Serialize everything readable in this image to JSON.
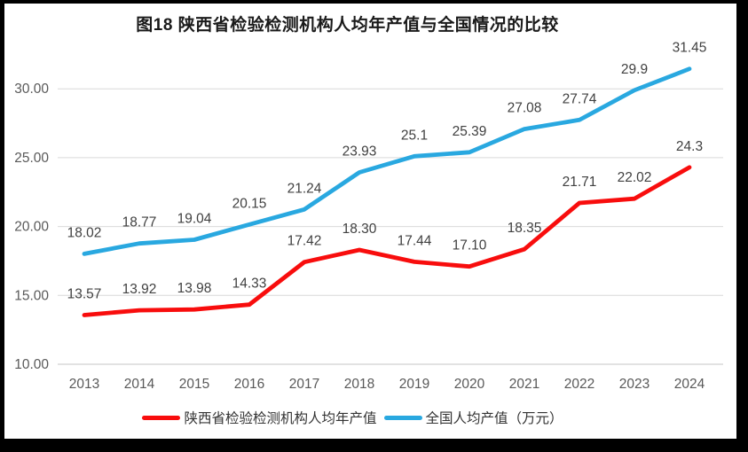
{
  "title": "图18 陕西省检验检测机构人均年产值与全国情况的比较",
  "colors": {
    "shaanxi_series": "#f80d0d",
    "national_series": "#29a8e0",
    "gridline": "#d9d9d9",
    "axis_line": "#c6c6c6",
    "frame": "#000000"
  },
  "chart_data": {
    "type": "line",
    "title": "图18 陕西省检验检测机构人均年产值与全国情况的比较",
    "categories": [
      "2013",
      "2014",
      "2015",
      "2016",
      "2017",
      "2018",
      "2019",
      "2020",
      "2021",
      "2022",
      "2023",
      "2024"
    ],
    "series": [
      {
        "name": "陕西省检验检测机构人均年产值",
        "color": "#f80d0d",
        "values": [
          13.57,
          13.92,
          13.98,
          14.33,
          17.42,
          18.3,
          17.44,
          17.1,
          18.35,
          21.71,
          22.02,
          24.3
        ],
        "labels": [
          "13.57",
          "13.92",
          "13.98",
          "14.33",
          "17.42",
          "18.30",
          "17.44",
          "17.10",
          "18.35",
          "21.71",
          "22.02",
          "24.3"
        ]
      },
      {
        "name": "全国人均产值（万元）",
        "color": "#29a8e0",
        "values": [
          18.02,
          18.77,
          19.04,
          20.15,
          21.24,
          23.93,
          25.1,
          25.39,
          27.08,
          27.74,
          29.9,
          31.45
        ],
        "labels": [
          "18.02",
          "18.77",
          "19.04",
          "20.15",
          "21.24",
          "23.93",
          "25.1",
          "25.39",
          "27.08",
          "27.74",
          "29.9",
          "31.45"
        ]
      }
    ],
    "xlabel": "",
    "ylabel": "",
    "y_ticks": [
      "10.00",
      "15.00",
      "20.00",
      "25.00",
      "30.00"
    ],
    "ylim": [
      10,
      32.5
    ],
    "grid": true,
    "legend_position": "bottom"
  },
  "legend": {
    "items": [
      {
        "label": "陕西省检验检测机构人均年产值",
        "color": "#f80d0d"
      },
      {
        "label": "全国人均产值（万元）",
        "color": "#29a8e0"
      }
    ]
  }
}
